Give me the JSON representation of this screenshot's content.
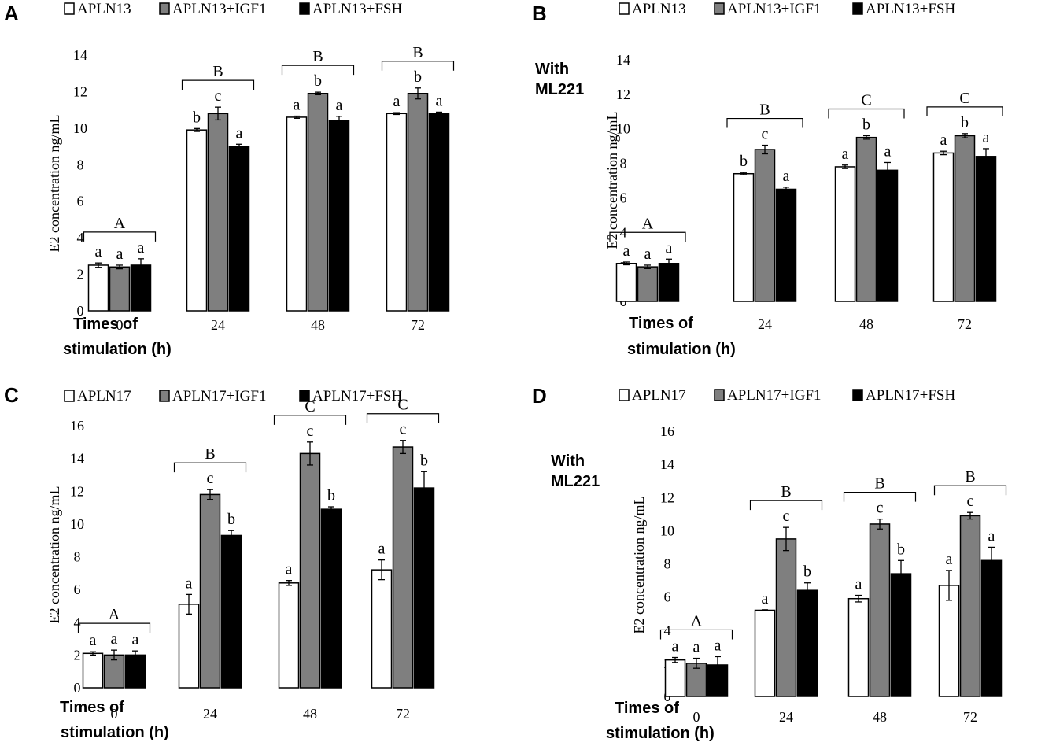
{
  "colors": {
    "APLN": "#ffffff",
    "IGF1": "#7f7f7f",
    "FSH": "#000000"
  },
  "chart_data": [
    {
      "panel": "A",
      "type": "bar",
      "legend": [
        "APLN13",
        "APLN13+IGF1",
        "APLN13+FSH"
      ],
      "ylabel": "E2 concentration ng/mL",
      "xlabel_lines": [
        "Times of",
        "stimulation (h)"
      ],
      "annotation_lines": [],
      "ylim": [
        0,
        14
      ],
      "yticks": [
        "0",
        "2",
        "4",
        "6",
        "8",
        "10",
        "12",
        "14"
      ],
      "categories": [
        "0",
        "24",
        "48",
        "72"
      ],
      "series": [
        {
          "name": "APLN13",
          "values": [
            2.5,
            9.9,
            10.6,
            10.8
          ],
          "errors": [
            0.12,
            0.08,
            0.06,
            0.05
          ]
        },
        {
          "name": "APLN13+IGF1",
          "values": [
            2.4,
            10.8,
            11.9,
            11.9
          ],
          "errors": [
            0.1,
            0.35,
            0.07,
            0.3
          ]
        },
        {
          "name": "APLN13+FSH",
          "values": [
            2.5,
            9.0,
            10.4,
            10.8
          ],
          "errors": [
            0.35,
            0.12,
            0.25,
            0.08
          ]
        }
      ],
      "bar_letters": [
        [
          "a",
          "a",
          "a"
        ],
        [
          "b",
          "c",
          "a"
        ],
        [
          "a",
          "b",
          "a"
        ],
        [
          "a",
          "b",
          "a"
        ]
      ],
      "group_letters": [
        "A",
        "B",
        "B",
        "B"
      ]
    },
    {
      "panel": "B",
      "type": "bar",
      "legend": [
        "APLN13",
        "APLN13+IGF1",
        "APLN13+FSH"
      ],
      "ylabel": "E2 concentration ng/mL",
      "xlabel_lines": [
        "Times of",
        "stimulation (h)"
      ],
      "annotation_lines": [
        "With",
        "ML221"
      ],
      "ylim": [
        0,
        14
      ],
      "yticks": [
        "0",
        "2",
        "4",
        "6",
        "8",
        "10",
        "12",
        "14"
      ],
      "categories": [
        "0",
        "24",
        "48",
        "72"
      ],
      "series": [
        {
          "name": "APLN13",
          "values": [
            2.2,
            7.4,
            7.8,
            8.6
          ],
          "errors": [
            0.08,
            0.07,
            0.1,
            0.1
          ]
        },
        {
          "name": "APLN13+IGF1",
          "values": [
            2.0,
            8.8,
            9.5,
            9.6
          ],
          "errors": [
            0.1,
            0.25,
            0.1,
            0.12
          ]
        },
        {
          "name": "APLN13+FSH",
          "values": [
            2.2,
            6.5,
            7.6,
            8.4
          ],
          "errors": [
            0.25,
            0.12,
            0.45,
            0.45
          ]
        }
      ],
      "bar_letters": [
        [
          "a",
          "a",
          "a"
        ],
        [
          "b",
          "c",
          "a"
        ],
        [
          "a",
          "b",
          "a"
        ],
        [
          "a",
          "b",
          "a"
        ]
      ],
      "group_letters": [
        "A",
        "B",
        "C",
        "C"
      ]
    },
    {
      "panel": "C",
      "type": "bar",
      "legend": [
        "APLN17",
        "APLN17+IGF1",
        "APLN17+FSH"
      ],
      "ylabel": "E2 concentration ng/mL",
      "xlabel_lines": [
        "Times of",
        "stimulation (h)"
      ],
      "annotation_lines": [],
      "ylim": [
        0,
        16
      ],
      "yticks": [
        "0",
        "2",
        "4",
        "6",
        "8",
        "10",
        "12",
        "14",
        "16"
      ],
      "categories": [
        "0",
        "24",
        "48",
        "72"
      ],
      "series": [
        {
          "name": "APLN17",
          "values": [
            2.1,
            5.1,
            6.4,
            7.2
          ],
          "errors": [
            0.1,
            0.6,
            0.15,
            0.6
          ]
        },
        {
          "name": "APLN17+IGF1",
          "values": [
            2.0,
            11.8,
            14.3,
            14.7
          ],
          "errors": [
            0.3,
            0.3,
            0.7,
            0.4
          ]
        },
        {
          "name": "APLN17+FSH",
          "values": [
            2.0,
            9.3,
            10.9,
            12.2
          ],
          "errors": [
            0.25,
            0.3,
            0.15,
            1.0
          ]
        }
      ],
      "bar_letters": [
        [
          "a",
          "a",
          "a"
        ],
        [
          "a",
          "c",
          "b"
        ],
        [
          "a",
          "c",
          "b"
        ],
        [
          "a",
          "c",
          "b"
        ]
      ],
      "group_letters": [
        "A",
        "B",
        "C",
        "C"
      ]
    },
    {
      "panel": "D",
      "type": "bar",
      "legend": [
        "APLN17",
        "APLN17+IGF1",
        "APLN17+FSH"
      ],
      "ylabel": "E2 concentration ng/mL",
      "xlabel_lines": [
        "Times of",
        "stimulation (h)"
      ],
      "annotation_lines": [
        "With",
        "ML221"
      ],
      "ylim": [
        0,
        16
      ],
      "yticks": [
        "0",
        "2",
        "4",
        "6",
        "8",
        "10",
        "12",
        "14",
        "16"
      ],
      "categories": [
        "0",
        "24",
        "48",
        "72"
      ],
      "series": [
        {
          "name": "APLN17",
          "values": [
            2.2,
            5.2,
            5.9,
            6.7
          ],
          "errors": [
            0.15,
            0.03,
            0.2,
            0.9
          ]
        },
        {
          "name": "APLN17+IGF1",
          "values": [
            2.0,
            9.5,
            10.4,
            10.9
          ],
          "errors": [
            0.3,
            0.7,
            0.3,
            0.2
          ]
        },
        {
          "name": "APLN17+FSH",
          "values": [
            1.9,
            6.4,
            7.4,
            8.2
          ],
          "errors": [
            0.5,
            0.45,
            0.8,
            0.8
          ]
        }
      ],
      "bar_letters": [
        [
          "a",
          "a",
          "a"
        ],
        [
          "a",
          "c",
          "b"
        ],
        [
          "a",
          "c",
          "b"
        ],
        [
          "a",
          "c",
          "a"
        ]
      ],
      "group_letters": [
        "A",
        "B",
        "B",
        "B"
      ]
    }
  ]
}
